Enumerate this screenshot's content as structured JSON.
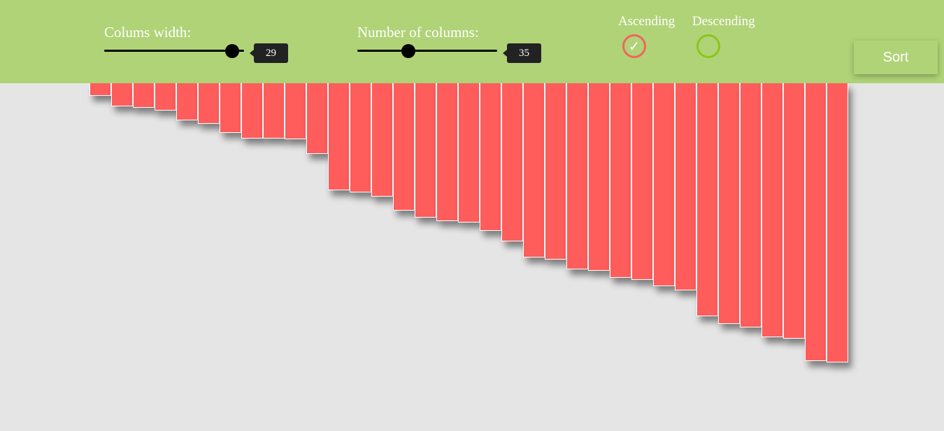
{
  "controls": {
    "width_slider": {
      "label": "Colums width:",
      "value": "29",
      "min": 10,
      "max": 30
    },
    "count_slider": {
      "label": "Number of columns:",
      "value": "35",
      "min": 10,
      "max": 100
    },
    "order": {
      "ascending_label": "Ascending",
      "descending_label": "Descending",
      "selected": "ascending",
      "check_glyph": "✓"
    },
    "sort_label": "Sort"
  },
  "colors": {
    "topbar": "#b0d377",
    "bar": "#ff5c5c",
    "ascending_ring": "#f06560",
    "descending_ring": "#8cc51a",
    "background": "#e5e5e5"
  },
  "bar_values": [
    18,
    33,
    35,
    39,
    53,
    58,
    71,
    79,
    79,
    80,
    101,
    153,
    156,
    162,
    182,
    192,
    197,
    199,
    211,
    226,
    249,
    252,
    266,
    268,
    278,
    281,
    290,
    296,
    333,
    344,
    349,
    363,
    365,
    397,
    399
  ],
  "bar_scale_max": 399
}
